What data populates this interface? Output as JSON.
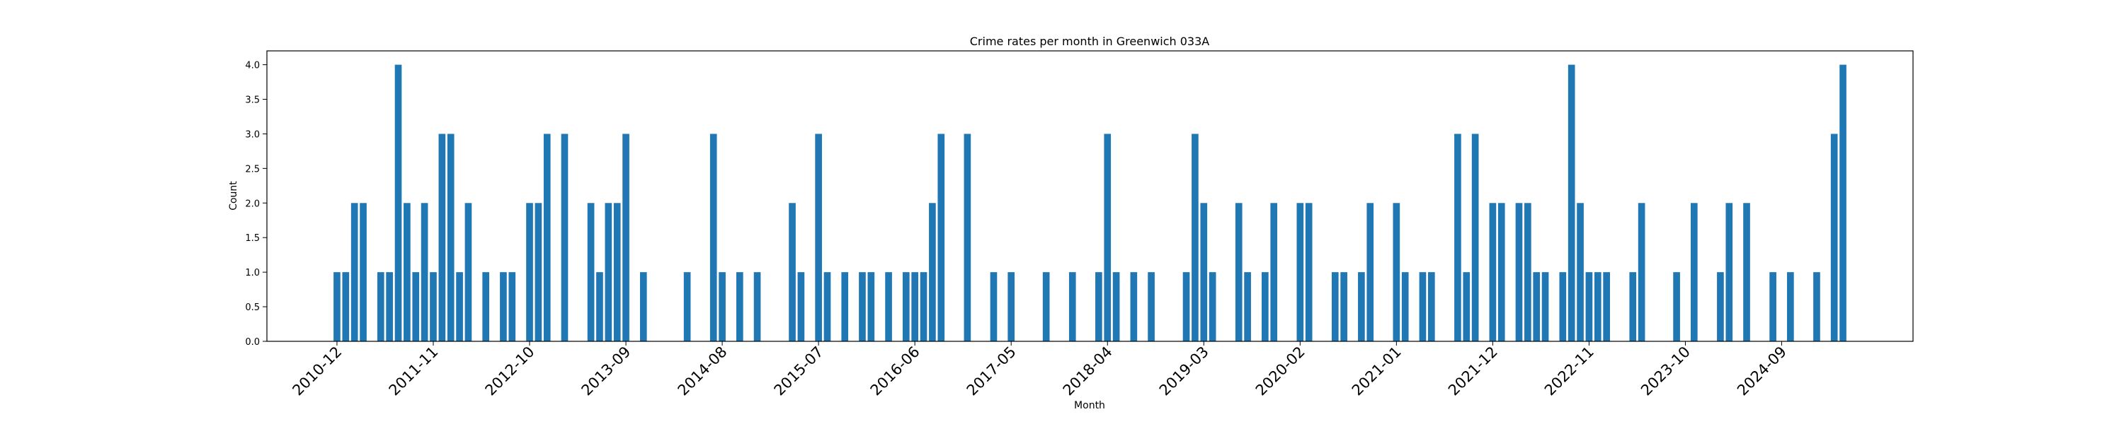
{
  "chart_data": {
    "type": "bar",
    "title": "Crime rates per month in Greenwich 033A",
    "xlabel": "Month",
    "ylabel": "Count",
    "ylim": [
      0,
      4.2
    ],
    "yticks": [
      "0.0",
      "0.5",
      "1.0",
      "1.5",
      "2.0",
      "2.5",
      "3.0",
      "3.5",
      "4.0"
    ],
    "xticks": [
      "2010-12",
      "2011-11",
      "2012-10",
      "2013-09",
      "2014-08",
      "2015-07",
      "2016-06",
      "2017-05",
      "2018-04",
      "2019-03",
      "2020-02",
      "2021-01",
      "2021-12",
      "2022-11",
      "2023-10",
      "2024-09"
    ],
    "x_range": [
      "2010-04",
      "2025-12"
    ],
    "grid": false,
    "bar_color": "#1f77b4",
    "x": [
      "2010-12",
      "2011-01",
      "2011-02",
      "2011-03",
      "2011-05",
      "2011-06",
      "2011-07",
      "2011-08",
      "2011-09",
      "2011-10",
      "2011-11",
      "2011-12",
      "2012-01",
      "2012-02",
      "2012-03",
      "2012-05",
      "2012-07",
      "2012-08",
      "2012-10",
      "2012-11",
      "2012-12",
      "2013-02",
      "2013-05",
      "2013-06",
      "2013-07",
      "2013-08",
      "2013-09",
      "2013-11",
      "2014-04",
      "2014-07",
      "2014-08",
      "2014-10",
      "2014-12",
      "2015-04",
      "2015-05",
      "2015-07",
      "2015-08",
      "2015-10",
      "2015-12",
      "2016-01",
      "2016-03",
      "2016-05",
      "2016-06",
      "2016-07",
      "2016-08",
      "2016-09",
      "2016-12",
      "2017-03",
      "2017-05",
      "2017-09",
      "2017-12",
      "2018-03",
      "2018-04",
      "2018-05",
      "2018-07",
      "2018-09",
      "2019-01",
      "2019-02",
      "2019-03",
      "2019-04",
      "2019-07",
      "2019-08",
      "2019-10",
      "2019-11",
      "2020-02",
      "2020-03",
      "2020-06",
      "2020-07",
      "2020-09",
      "2020-10",
      "2021-01",
      "2021-02",
      "2021-04",
      "2021-05",
      "2021-08",
      "2021-09",
      "2021-10",
      "2021-12",
      "2022-01",
      "2022-03",
      "2022-04",
      "2022-05",
      "2022-06",
      "2022-08",
      "2022-09",
      "2022-10",
      "2022-11",
      "2022-12",
      "2023-01",
      "2023-04",
      "2023-05",
      "2023-09",
      "2023-11",
      "2024-02",
      "2024-03",
      "2024-05",
      "2024-08",
      "2024-10",
      "2025-01",
      "2025-03",
      "2025-04"
    ],
    "values": [
      1,
      1,
      2,
      2,
      1,
      1,
      4,
      2,
      1,
      2,
      1,
      3,
      3,
      1,
      2,
      1,
      1,
      1,
      2,
      2,
      3,
      3,
      2,
      1,
      2,
      2,
      3,
      1,
      1,
      3,
      1,
      1,
      1,
      2,
      1,
      3,
      1,
      1,
      1,
      1,
      1,
      1,
      1,
      1,
      2,
      3,
      3,
      1,
      1,
      1,
      1,
      1,
      3,
      1,
      1,
      1,
      1,
      3,
      2,
      1,
      2,
      1,
      1,
      2,
      2,
      2,
      1,
      1,
      1,
      2,
      2,
      1,
      1,
      1,
      3,
      1,
      3,
      2,
      2,
      2,
      2,
      1,
      1,
      1,
      4,
      2,
      1,
      1,
      1,
      1,
      2,
      1,
      2,
      1,
      2,
      2,
      1,
      1,
      1,
      3,
      4
    ]
  }
}
